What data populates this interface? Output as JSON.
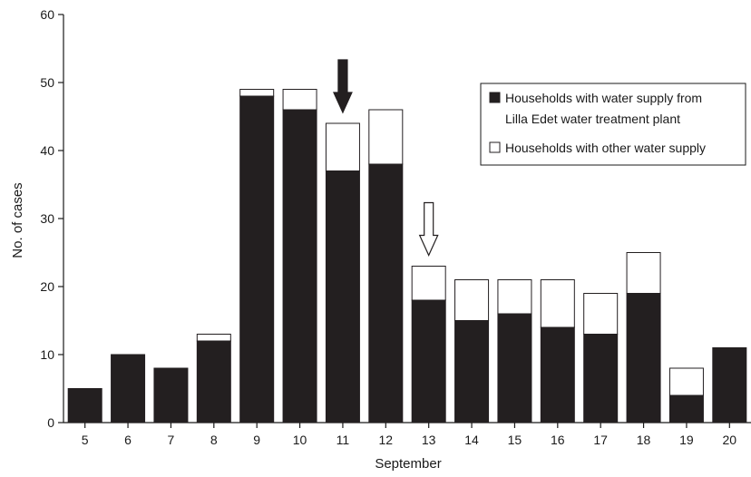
{
  "chart_data": {
    "type": "bar",
    "stacked": true,
    "xlabel": "September",
    "ylabel": "No. of cases",
    "ylim": [
      0,
      60
    ],
    "yticks": [
      0,
      10,
      20,
      30,
      40,
      50,
      60
    ],
    "categories": [
      "5",
      "6",
      "7",
      "8",
      "9",
      "10",
      "11",
      "12",
      "13",
      "14",
      "15",
      "16",
      "17",
      "18",
      "19",
      "20"
    ],
    "series": [
      {
        "name": "Households with water supply from Lilla Edet water treatment plant",
        "color": "#231f20",
        "values": [
          5,
          10,
          8,
          12,
          48,
          46,
          37,
          38,
          18,
          15,
          16,
          14,
          13,
          19,
          4,
          11
        ]
      },
      {
        "name": "Households with other water supply",
        "color": "#ffffff",
        "values": [
          0,
          0,
          0,
          1,
          1,
          3,
          7,
          8,
          5,
          6,
          5,
          7,
          6,
          6,
          4,
          0
        ]
      }
    ],
    "legend": {
      "placement": "top-right",
      "entries": [
        "Households with water supply from",
        "Lilla Edet water treatment plant",
        "Households with other water supply"
      ]
    },
    "annotations": [
      {
        "type": "arrow",
        "style": "filled",
        "at_category": "11"
      },
      {
        "type": "arrow",
        "style": "outline",
        "at_category": "13"
      }
    ]
  }
}
